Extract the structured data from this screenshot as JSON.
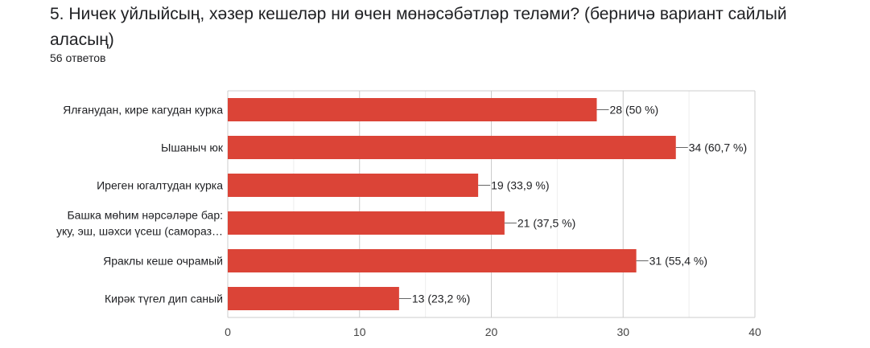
{
  "question": {
    "title": "5. Ничек уйлыйсың, хәзер кешеләр ни өчен мөнәсәбәтләр теләми? (берничә вариант сайлый аласың)",
    "responses": "56 ответов"
  },
  "chart_data": {
    "type": "bar",
    "orientation": "horizontal",
    "categories": [
      [
        "Ялғанудан, кире кагудан курка"
      ],
      [
        "Ышаныч юк"
      ],
      [
        "Иреген югалтудан курка"
      ],
      [
        "Башка мөһим нәрсәләре бар:",
        "уку, эш, шәхси үсеш (самораз…"
      ],
      [
        "Яраклы кеше очрамый"
      ],
      [
        "Кирәк түгел дип саный"
      ]
    ],
    "values": [
      28,
      34,
      19,
      21,
      31,
      13
    ],
    "value_labels": [
      "28 (50 %)",
      "34 (60,7 %)",
      "19 (33,9 %)",
      "21 (37,5 %)",
      "31 (55,4 %)",
      "13 (23,2 %)"
    ],
    "xlim": [
      0,
      40
    ],
    "xticks": [
      0,
      10,
      20,
      30,
      40
    ],
    "bar_color": "#db4437",
    "grid": true
  }
}
